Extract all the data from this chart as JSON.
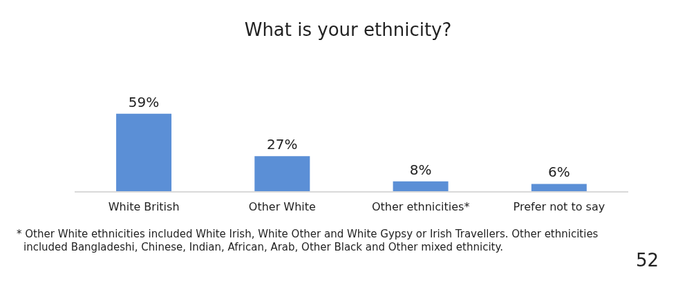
{
  "chart_data": {
    "type": "bar",
    "title": "What is your ethnicity?",
    "categories": [
      "White British",
      "Other White",
      "Other ethnicities*",
      "Prefer not to say"
    ],
    "values": [
      59,
      27,
      8,
      6
    ],
    "color": "#5b8fd6",
    "value_labels": [
      "59%",
      "27%",
      "8%",
      "6%"
    ],
    "grid": false,
    "annotations": [
      "* Other White ethnicities included White Irish, White Other and White Gypsy or Irish Travellers. Other ethnicities included Bangladeshi, Chinese, Indian, African, Arab, Other Black and Other mixed ethnicity.",
      "52"
    ]
  }
}
